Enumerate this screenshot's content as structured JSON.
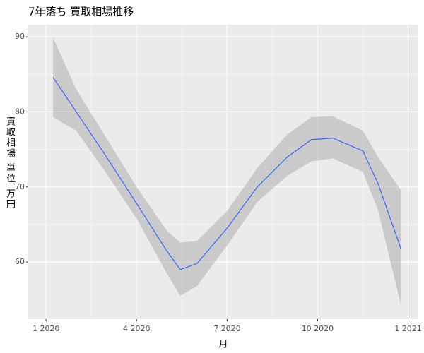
{
  "chart_data": {
    "type": "smooth",
    "title": "7年落ち 買取相場推移",
    "x_label": "月",
    "y_label": "買取相場 単位 万円",
    "x": [
      0.23,
      1,
      2,
      3,
      4,
      4.45,
      5,
      6,
      7,
      8,
      8.8,
      9.5,
      10.5,
      11,
      11.76
    ],
    "values": [
      84.6,
      80.0,
      74.0,
      67.8,
      61.5,
      59.0,
      59.8,
      64.5,
      70.0,
      74.0,
      76.3,
      76.5,
      74.8,
      70.5,
      61.8
    ],
    "lower": [
      79.3,
      77.5,
      71.8,
      65.8,
      58.5,
      55.5,
      56.8,
      62.2,
      68.0,
      71.5,
      73.4,
      73.8,
      72.0,
      67.0,
      54.3
    ],
    "upper": [
      89.9,
      83.0,
      76.5,
      70.0,
      64.2,
      62.6,
      62.8,
      66.8,
      72.5,
      77.0,
      79.3,
      79.4,
      77.5,
      74.0,
      69.6
    ],
    "color": "#3366FF",
    "band_color": "#999999",
    "xlim": [
      -0.59,
      12.34
    ],
    "ylim": [
      52.4,
      91.6
    ],
    "xticks": [
      {
        "value": 0,
        "label": "1 2020"
      },
      {
        "value": 3,
        "label": "4 2020"
      },
      {
        "value": 6,
        "label": "7 2020"
      },
      {
        "value": 9,
        "label": "10 2020"
      },
      {
        "value": 12,
        "label": "1 2021"
      }
    ],
    "yticks": [
      60,
      70,
      80,
      90
    ],
    "grid": true
  }
}
